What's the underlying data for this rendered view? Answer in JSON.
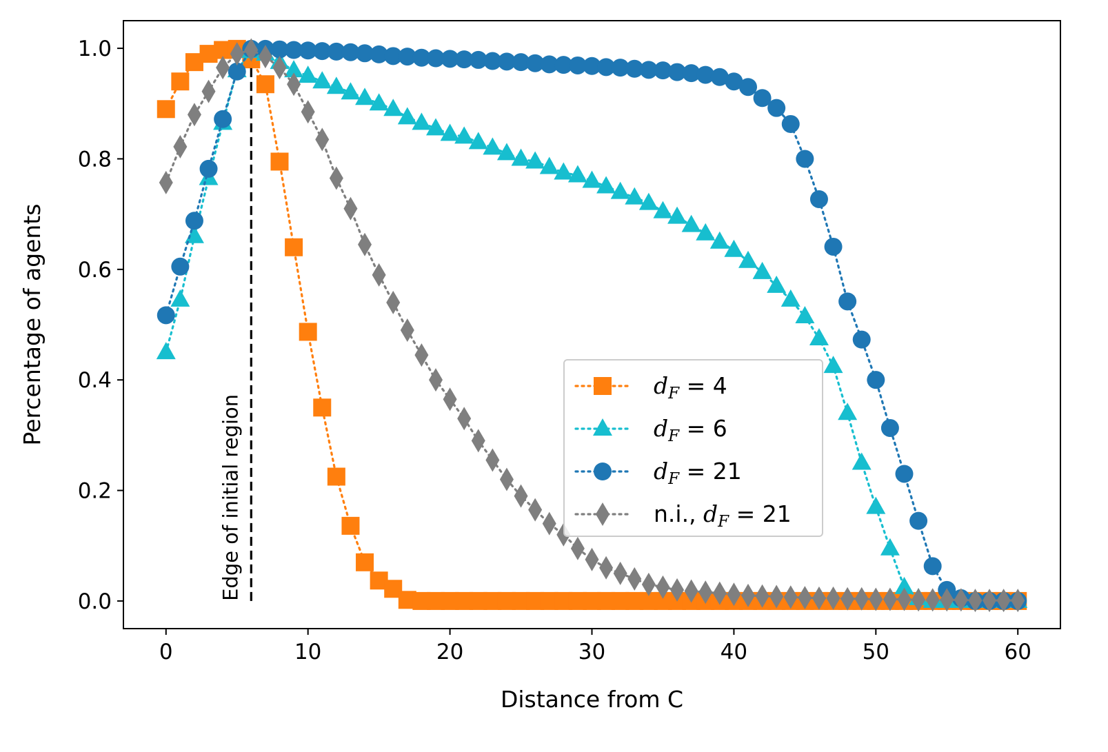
{
  "chart_data": {
    "type": "line",
    "title": "",
    "xlabel": "Distance from C",
    "ylabel": "Percentage of agents",
    "xlim": [
      -3,
      63
    ],
    "ylim": [
      -0.05,
      1.05
    ],
    "xticks": [
      0,
      10,
      20,
      30,
      40,
      50,
      60
    ],
    "xtick_labels": [
      "0",
      "10",
      "20",
      "30",
      "40",
      "50",
      "60"
    ],
    "yticks": [
      0.0,
      0.2,
      0.4,
      0.6,
      0.8,
      1.0
    ],
    "ytick_labels": [
      "0.0",
      "0.2",
      "0.4",
      "0.6",
      "0.8",
      "1.0"
    ],
    "grid": false,
    "legend_position": "center-right",
    "annotation": {
      "text": "Edge of initial region",
      "x": 6,
      "style": "dashed vertical line"
    },
    "series": [
      {
        "name": "d_F = 4",
        "legend_prefix": "",
        "legend_var": "d",
        "legend_sub": "F",
        "legend_rhs": " = 4",
        "color": "#ff7f0e",
        "marker": "square",
        "x": [
          0,
          1,
          2,
          3,
          4,
          5,
          6,
          7,
          8,
          9,
          10,
          11,
          12,
          13,
          14,
          15,
          16,
          17,
          18,
          19,
          20,
          21,
          22,
          23,
          24,
          25,
          26,
          27,
          28,
          29,
          30,
          31,
          32,
          33,
          34,
          35,
          36,
          37,
          38,
          39,
          40,
          41,
          42,
          43,
          44,
          45,
          46,
          47,
          48,
          49,
          50,
          51,
          52,
          53,
          54,
          55,
          56,
          57,
          58,
          59,
          60
        ],
        "values": [
          0.89,
          0.94,
          0.975,
          0.99,
          0.997,
          0.999,
          0.98,
          0.935,
          0.795,
          0.64,
          0.487,
          0.35,
          0.225,
          0.136,
          0.07,
          0.037,
          0.022,
          0.002,
          0,
          0,
          0,
          0,
          0,
          0,
          0,
          0,
          0,
          0,
          0,
          0,
          0,
          0,
          0,
          0,
          0,
          0,
          0,
          0,
          0,
          0,
          0,
          0,
          0,
          0,
          0,
          0,
          0,
          0,
          0,
          0,
          0,
          0,
          0,
          0,
          0,
          0,
          0,
          0,
          0,
          0,
          0
        ]
      },
      {
        "name": "d_F = 6",
        "legend_prefix": "",
        "legend_var": "d",
        "legend_sub": "F",
        "legend_rhs": " = 6",
        "color": "#17becf",
        "marker": "triangle",
        "x": [
          0,
          1,
          2,
          3,
          4,
          5,
          6,
          7,
          8,
          9,
          10,
          11,
          12,
          13,
          14,
          15,
          16,
          17,
          18,
          19,
          20,
          21,
          22,
          23,
          24,
          25,
          26,
          27,
          28,
          29,
          30,
          31,
          32,
          33,
          34,
          35,
          36,
          37,
          38,
          39,
          40,
          41,
          42,
          43,
          44,
          45,
          46,
          47,
          48,
          49,
          50,
          51,
          52,
          53,
          54,
          55,
          56,
          57,
          58,
          59,
          60
        ],
        "values": [
          0.45,
          0.545,
          0.66,
          0.765,
          0.865,
          0.96,
          0.995,
          0.99,
          0.975,
          0.96,
          0.95,
          0.94,
          0.93,
          0.92,
          0.91,
          0.9,
          0.89,
          0.875,
          0.865,
          0.855,
          0.845,
          0.84,
          0.83,
          0.82,
          0.81,
          0.8,
          0.795,
          0.785,
          0.775,
          0.77,
          0.76,
          0.75,
          0.74,
          0.73,
          0.72,
          0.705,
          0.695,
          0.68,
          0.665,
          0.65,
          0.635,
          0.615,
          0.595,
          0.57,
          0.545,
          0.515,
          0.475,
          0.425,
          0.34,
          0.25,
          0.17,
          0.095,
          0.025,
          0.005,
          0,
          0,
          0,
          0,
          0,
          0,
          0
        ]
      },
      {
        "name": "d_F = 21",
        "legend_prefix": "",
        "legend_var": "d",
        "legend_sub": "F",
        "legend_rhs": " = 21",
        "color": "#1f77b4",
        "marker": "circle",
        "x": [
          0,
          1,
          2,
          3,
          4,
          5,
          6,
          7,
          8,
          9,
          10,
          11,
          12,
          13,
          14,
          15,
          16,
          17,
          18,
          19,
          20,
          21,
          22,
          23,
          24,
          25,
          26,
          27,
          28,
          29,
          30,
          31,
          32,
          33,
          34,
          35,
          36,
          37,
          38,
          39,
          40,
          41,
          42,
          43,
          44,
          45,
          46,
          47,
          48,
          49,
          50,
          51,
          52,
          53,
          54,
          55,
          56,
          57,
          58,
          59,
          60
        ],
        "values": [
          0.517,
          0.605,
          0.688,
          0.782,
          0.872,
          0.958,
          0.999,
          0.999,
          0.998,
          0.997,
          0.996,
          0.995,
          0.994,
          0.993,
          0.991,
          0.989,
          0.986,
          0.985,
          0.983,
          0.982,
          0.981,
          0.98,
          0.979,
          0.977,
          0.976,
          0.975,
          0.973,
          0.971,
          0.97,
          0.969,
          0.968,
          0.966,
          0.965,
          0.963,
          0.961,
          0.96,
          0.957,
          0.955,
          0.952,
          0.948,
          0.94,
          0.93,
          0.91,
          0.892,
          0.863,
          0.8,
          0.727,
          0.641,
          0.542,
          0.473,
          0.4,
          0.313,
          0.23,
          0.145,
          0.063,
          0.02,
          0.005,
          0,
          0,
          0,
          0
        ]
      },
      {
        "name": "n.i., d_F = 21",
        "legend_prefix": "n.i., ",
        "legend_var": "d",
        "legend_sub": "F",
        "legend_rhs": " = 21",
        "color": "#7f7f7f",
        "marker": "diamond",
        "x": [
          0,
          1,
          2,
          3,
          4,
          5,
          6,
          7,
          8,
          9,
          10,
          11,
          12,
          13,
          14,
          15,
          16,
          17,
          18,
          19,
          20,
          21,
          22,
          23,
          24,
          25,
          26,
          27,
          28,
          29,
          30,
          31,
          32,
          33,
          34,
          35,
          36,
          37,
          38,
          39,
          40,
          41,
          42,
          43,
          44,
          45,
          46,
          47,
          48,
          49,
          50,
          51,
          52,
          53,
          54,
          55,
          56,
          57,
          58,
          59,
          60
        ],
        "values": [
          0.757,
          0.822,
          0.88,
          0.922,
          0.965,
          0.99,
          0.997,
          0.985,
          0.965,
          0.935,
          0.885,
          0.835,
          0.765,
          0.71,
          0.645,
          0.59,
          0.54,
          0.49,
          0.445,
          0.4,
          0.365,
          0.33,
          0.29,
          0.255,
          0.22,
          0.19,
          0.165,
          0.14,
          0.12,
          0.095,
          0.075,
          0.06,
          0.05,
          0.04,
          0.03,
          0.025,
          0.02,
          0.018,
          0.016,
          0.014,
          0.012,
          0.01,
          0.009,
          0.008,
          0.007,
          0.006,
          0.005,
          0.005,
          0.004,
          0.004,
          0.003,
          0.003,
          0.003,
          0.002,
          0.002,
          0.002,
          0.002,
          0.001,
          0.001,
          0.001,
          0.001
        ]
      }
    ]
  }
}
